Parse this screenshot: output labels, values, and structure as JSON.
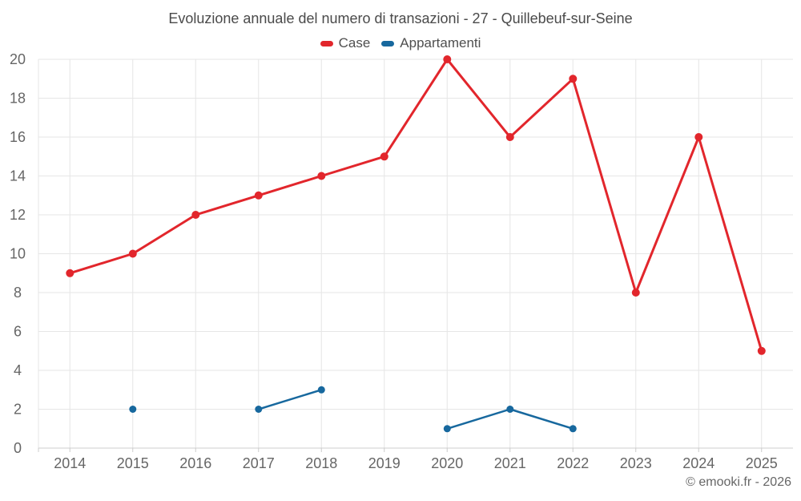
{
  "header": {
    "title": "Evoluzione annuale del numero di transazioni - 27 - Quillebeuf-sur-Seine"
  },
  "legend": {
    "items": [
      {
        "label": "Case",
        "color": "#e2262c"
      },
      {
        "label": "Appartamenti",
        "color": "#17689e"
      }
    ]
  },
  "footer": {
    "credits": "© emooki.fr - 2026"
  },
  "colors": {
    "background": "#ffffff",
    "case_series": "#e2262c",
    "appartamenti_series": "#17689e",
    "grid": "#e6e6e6",
    "axis_line": "#cccccc",
    "axis_label": "#666666",
    "title_text": "#4a4a4a",
    "legend_label": "#4f4f4f",
    "credits_text": "#666666"
  },
  "chart_data": {
    "type": "line",
    "title": "Evoluzione annuale del numero di transazioni - 27 - Quillebeuf-sur-Seine",
    "xlabel": "",
    "ylabel": "",
    "categories": [
      "2014",
      "2015",
      "2016",
      "2017",
      "2018",
      "2019",
      "2020",
      "2021",
      "2022",
      "2023",
      "2024",
      "2025"
    ],
    "ylim": [
      0,
      20
    ],
    "ytick_step": 2,
    "grid": true,
    "legend_position": "top",
    "series": [
      {
        "name": "Case",
        "color": "#e2262c",
        "values": [
          9,
          10,
          12,
          13,
          14,
          15,
          20,
          16,
          19,
          8,
          16,
          5
        ]
      },
      {
        "name": "Appartamenti",
        "color": "#17689e",
        "values": [
          null,
          2,
          null,
          2,
          3,
          null,
          1,
          2,
          1,
          null,
          null,
          null
        ]
      }
    ]
  }
}
